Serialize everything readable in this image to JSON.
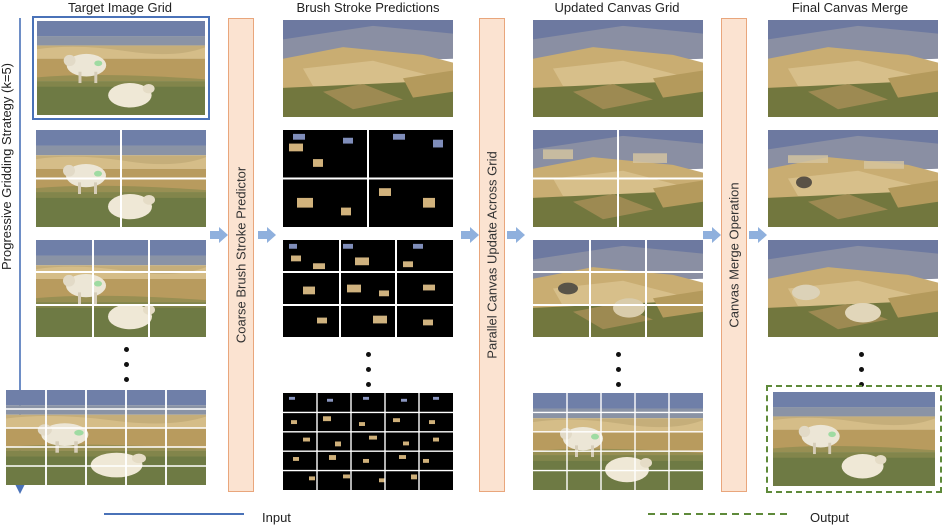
{
  "columns": {
    "target": "Target Image Grid",
    "brush": "Brush Stroke Predictions",
    "updated": "Updated Canvas Grid",
    "final": "Final Canvas Merge"
  },
  "side_label": "Progressive Gridding Strategy (k=5)",
  "stages": {
    "predictor": "Coarse Brush Stroke Predictor",
    "parallel": "Parallel Canvas Update Across Grid",
    "merge": "Canvas Merge Operation"
  },
  "legend": {
    "input": "Input",
    "output": "Output"
  },
  "colors": {
    "input_border": "#4a72b8",
    "output_border": "#5e8a3a",
    "stage_fill": "#fbe3d1",
    "stage_border": "#e9a67c",
    "arrow": "#8fb0dd"
  }
}
